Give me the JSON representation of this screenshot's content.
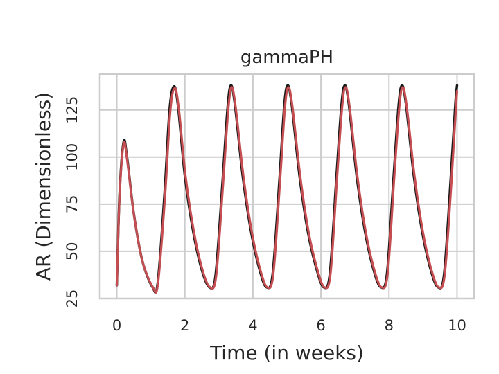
{
  "chart_data": {
    "type": "line",
    "title": "gammaPH",
    "xlabel": "Time (in weeks)",
    "ylabel": "AR (Dimensionless)",
    "xlim": [
      -0.5,
      10.5
    ],
    "ylim": [
      25,
      144
    ],
    "xticks": [
      0,
      2,
      4,
      6,
      8,
      10
    ],
    "yticks": [
      25,
      50,
      75,
      100,
      125
    ],
    "grid": true,
    "series": [
      {
        "color": "#1a1a1a",
        "points": [
          [
            0,
            32
          ],
          [
            0.08,
            80
          ],
          [
            0.2,
            108
          ],
          [
            0.3,
            100
          ],
          [
            0.5,
            70
          ],
          [
            0.75,
            45
          ],
          [
            1.05,
            31
          ],
          [
            1.2,
            33
          ],
          [
            1.4,
            80
          ],
          [
            1.55,
            125
          ],
          [
            1.68,
            137.5
          ],
          [
            1.8,
            127
          ],
          [
            2.0,
            90
          ],
          [
            2.25,
            60
          ],
          [
            2.5,
            40
          ],
          [
            2.72,
            31
          ],
          [
            2.9,
            37
          ],
          [
            3.1,
            85
          ],
          [
            3.25,
            125
          ],
          [
            3.35,
            138
          ],
          [
            3.47,
            128
          ],
          [
            3.7,
            90
          ],
          [
            3.95,
            60
          ],
          [
            4.2,
            40
          ],
          [
            4.4,
            31
          ],
          [
            4.58,
            38
          ],
          [
            4.78,
            88
          ],
          [
            4.92,
            127
          ],
          [
            5.02,
            138
          ],
          [
            5.14,
            128
          ],
          [
            5.37,
            90
          ],
          [
            5.62,
            60
          ],
          [
            5.88,
            40
          ],
          [
            6.08,
            31
          ],
          [
            6.26,
            38
          ],
          [
            6.45,
            88
          ],
          [
            6.6,
            127
          ],
          [
            6.7,
            138
          ],
          [
            6.82,
            128
          ],
          [
            7.05,
            90
          ],
          [
            7.3,
            60
          ],
          [
            7.55,
            40
          ],
          [
            7.76,
            31
          ],
          [
            7.94,
            38
          ],
          [
            8.13,
            88
          ],
          [
            8.28,
            127
          ],
          [
            8.38,
            138
          ],
          [
            8.5,
            128
          ],
          [
            8.73,
            90
          ],
          [
            8.98,
            60
          ],
          [
            9.23,
            40
          ],
          [
            9.44,
            31
          ],
          [
            9.62,
            38
          ],
          [
            9.82,
            90
          ],
          [
            9.95,
            128
          ],
          [
            10.0,
            138
          ]
        ]
      },
      {
        "color": "#c44e52",
        "points": [
          [
            0,
            32
          ],
          [
            0.08,
            79
          ],
          [
            0.2,
            107
          ],
          [
            0.3,
            99
          ],
          [
            0.5,
            70
          ],
          [
            0.75,
            45
          ],
          [
            1.06,
            31
          ],
          [
            1.21,
            33
          ],
          [
            1.42,
            80
          ],
          [
            1.57,
            124
          ],
          [
            1.7,
            136.5
          ],
          [
            1.82,
            126
          ],
          [
            2.02,
            90
          ],
          [
            2.27,
            60
          ],
          [
            2.52,
            40
          ],
          [
            2.74,
            31
          ],
          [
            2.92,
            37
          ],
          [
            3.12,
            85
          ],
          [
            3.27,
            124
          ],
          [
            3.37,
            137
          ],
          [
            3.49,
            127
          ],
          [
            3.72,
            90
          ],
          [
            3.97,
            60
          ],
          [
            4.22,
            40
          ],
          [
            4.42,
            31
          ],
          [
            4.6,
            38
          ],
          [
            4.8,
            88
          ],
          [
            4.94,
            126
          ],
          [
            5.04,
            137
          ],
          [
            5.16,
            127
          ],
          [
            5.39,
            90
          ],
          [
            5.64,
            60
          ],
          [
            5.9,
            40
          ],
          [
            6.1,
            31
          ],
          [
            6.28,
            38
          ],
          [
            6.47,
            88
          ],
          [
            6.62,
            126
          ],
          [
            6.72,
            137
          ],
          [
            6.84,
            127
          ],
          [
            7.07,
            90
          ],
          [
            7.32,
            60
          ],
          [
            7.57,
            40
          ],
          [
            7.78,
            31
          ],
          [
            7.96,
            38
          ],
          [
            8.15,
            88
          ],
          [
            8.3,
            126
          ],
          [
            8.4,
            137
          ],
          [
            8.52,
            127
          ],
          [
            8.75,
            90
          ],
          [
            9.0,
            60
          ],
          [
            9.25,
            40
          ],
          [
            9.46,
            31
          ],
          [
            9.64,
            38
          ],
          [
            9.84,
            88
          ],
          [
            9.96,
            124
          ],
          [
            10.0,
            135
          ]
        ]
      }
    ]
  }
}
